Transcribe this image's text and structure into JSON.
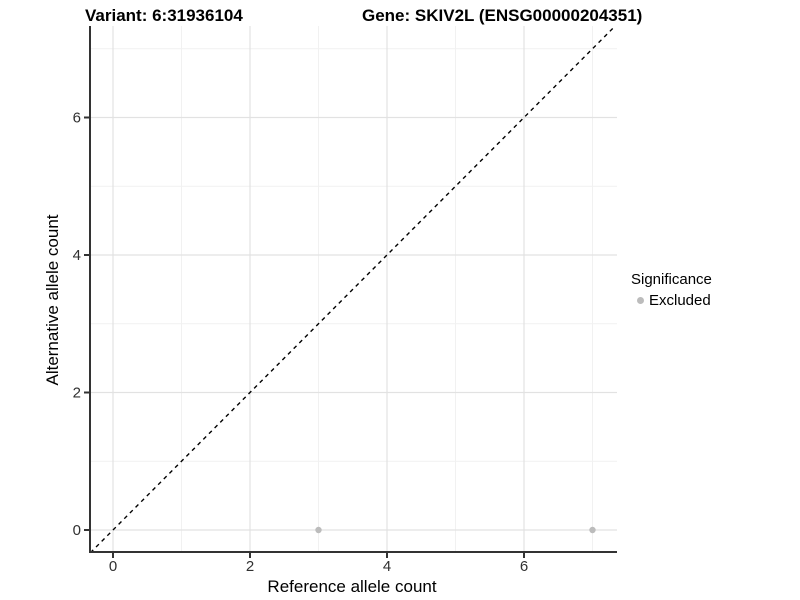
{
  "header": {
    "title_left": "Variant: 6:31936104",
    "title_right": "Gene: SKIV2L (ENSG00000204351)"
  },
  "chart_data": {
    "type": "scatter",
    "xlabel": "Reference allele count",
    "ylabel": "Alternative allele count",
    "xlim": [
      -0.35,
      7.35
    ],
    "ylim": [
      -0.35,
      7.35
    ],
    "x_major_ticks": [
      0,
      2,
      4,
      6
    ],
    "y_major_ticks": [
      0,
      2,
      4,
      6
    ],
    "x_minor_gridlines": [
      1,
      3,
      5,
      7
    ],
    "y_minor_gridlines": [
      1,
      3,
      5,
      7
    ],
    "grid": true,
    "legend_position": "right",
    "series": [
      {
        "name": "Excluded",
        "color": "#bcbcbc",
        "points": [
          {
            "x": 3,
            "y": 0
          },
          {
            "x": 7,
            "y": 0
          }
        ]
      }
    ],
    "reference_line": {
      "type": "identity",
      "equation": "y = x",
      "style": "dashed",
      "color": "#000000"
    }
  },
  "legend": {
    "title": "Significance",
    "entries": [
      {
        "label": "Excluded",
        "color": "#bcbcbc"
      }
    ]
  },
  "colors": {
    "background": "#ffffff",
    "axis": "#333333",
    "tick_label": "#303030",
    "grid_major": "#e2e2e2",
    "grid_minor": "#f1f1f1",
    "point": "#bcbcbc"
  }
}
